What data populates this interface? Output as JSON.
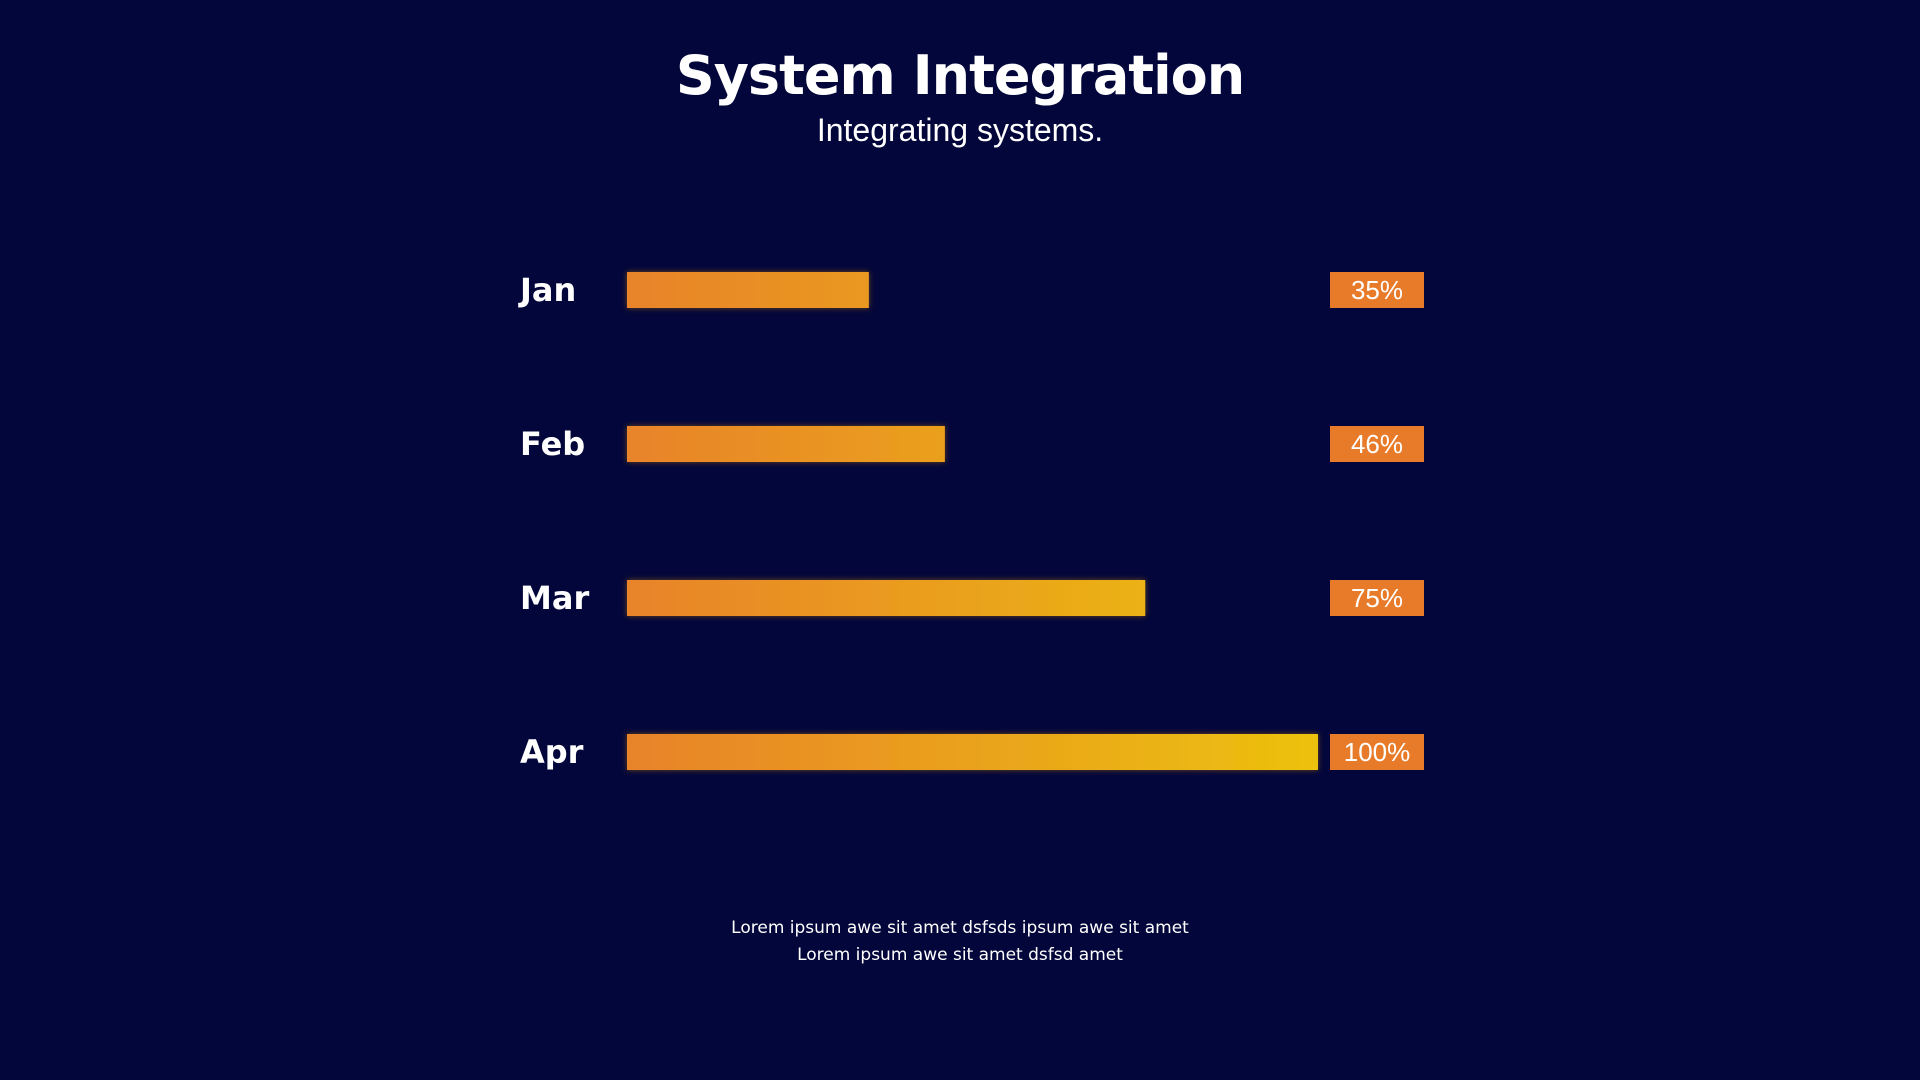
{
  "slide": {
    "title": "System Integration",
    "subtitle": "Integrating systems.",
    "footer_lines": [
      "Lorem ipsum awe sit amet dsfsds ipsum awe sit amet",
      "Lorem ipsum awe sit amet dsfsd amet"
    ]
  },
  "colors": {
    "background": "#03063a",
    "bar_start": "#e8832a",
    "bar_end": "#ecc10e",
    "badge": "#e87b29",
    "text": "#ffffff"
  },
  "chart_data": {
    "type": "bar",
    "orientation": "horizontal",
    "categories": [
      "Jan",
      "Feb",
      "Mar",
      "Apr"
    ],
    "values": [
      35,
      46,
      75,
      100
    ],
    "value_labels": [
      "35%",
      "46%",
      "75%",
      "100%"
    ],
    "xlim": [
      0,
      100
    ],
    "title": "System Integration",
    "subtitle": "Integrating systems.",
    "grid": false
  }
}
